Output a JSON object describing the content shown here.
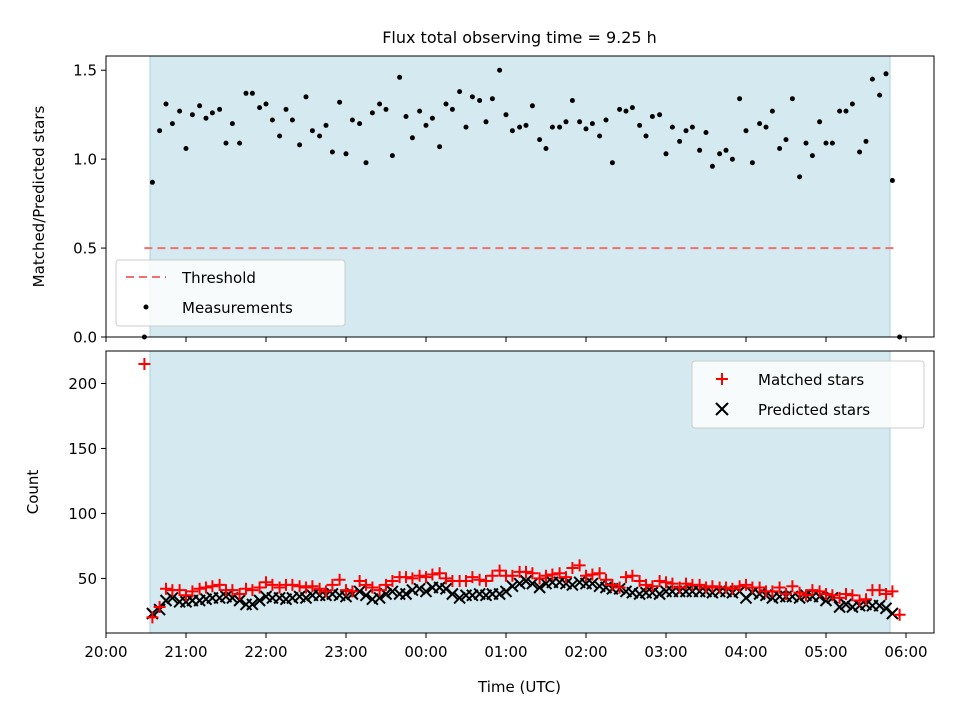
{
  "chart_data": [
    {
      "type": "scatter",
      "title": "Flux total observing time = 9.25 h",
      "xlabel": "",
      "ylabel": "Matched/Predicted stars",
      "ylim": [
        0,
        1.58
      ],
      "yticks": [
        0.0,
        0.5,
        1.0,
        1.5
      ],
      "ytick_labels": [
        "0.0",
        "0.5",
        "1.0",
        "1.5"
      ],
      "xlim_hours": [
        20.0,
        30.35
      ],
      "observing_window_hours": [
        20.55,
        29.8
      ],
      "threshold": {
        "name": "Threshold",
        "value": 0.5,
        "x_from_hours": 20.48,
        "x_to_hours": 29.88,
        "color": "#f07070"
      },
      "legend": {
        "position": "lower-left",
        "entries": [
          "Threshold",
          "Measurements"
        ]
      },
      "series": [
        {
          "name": "Measurements",
          "color": "#000000",
          "x_hours": [
            20.48,
            20.58,
            20.67,
            20.75,
            20.83,
            20.92,
            21.0,
            21.08,
            21.17,
            21.25,
            21.33,
            21.42,
            21.5,
            21.58,
            21.67,
            21.75,
            21.83,
            21.92,
            22.0,
            22.08,
            22.17,
            22.25,
            22.33,
            22.42,
            22.5,
            22.58,
            22.67,
            22.75,
            22.83,
            22.92,
            23.0,
            23.08,
            23.17,
            23.25,
            23.33,
            23.42,
            23.5,
            23.58,
            23.67,
            23.75,
            23.83,
            23.92,
            24.0,
            24.08,
            24.17,
            24.25,
            24.33,
            24.42,
            24.5,
            24.58,
            24.67,
            24.75,
            24.83,
            24.92,
            25.0,
            25.08,
            25.17,
            25.25,
            25.33,
            25.42,
            25.5,
            25.58,
            25.67,
            25.75,
            25.83,
            25.92,
            26.0,
            26.08,
            26.17,
            26.25,
            26.33,
            26.42,
            26.5,
            26.58,
            26.67,
            26.75,
            26.83,
            26.92,
            27.0,
            27.08,
            27.17,
            27.25,
            27.33,
            27.42,
            27.5,
            27.58,
            27.67,
            27.75,
            27.83,
            27.92,
            28.0,
            28.08,
            28.17,
            28.25,
            28.33,
            28.42,
            28.5,
            28.58,
            28.67,
            28.75,
            28.83,
            28.92,
            29.0,
            29.08,
            29.17,
            29.25,
            29.33,
            29.42,
            29.5,
            29.58,
            29.67,
            29.75,
            29.83,
            29.92
          ],
          "values": [
            0.0,
            0.87,
            1.16,
            1.31,
            1.2,
            1.27,
            1.06,
            1.25,
            1.3,
            1.23,
            1.26,
            1.28,
            1.09,
            1.2,
            1.09,
            1.37,
            1.37,
            1.29,
            1.31,
            1.22,
            1.13,
            1.28,
            1.22,
            1.08,
            1.35,
            1.16,
            1.13,
            1.19,
            1.04,
            1.32,
            1.03,
            1.22,
            1.2,
            0.98,
            1.26,
            1.31,
            1.28,
            1.02,
            1.46,
            1.24,
            1.12,
            1.27,
            1.19,
            1.23,
            1.07,
            1.31,
            1.28,
            1.38,
            1.18,
            1.35,
            1.33,
            1.21,
            1.34,
            1.5,
            1.25,
            1.16,
            1.18,
            1.19,
            1.3,
            1.11,
            1.06,
            1.18,
            1.18,
            1.21,
            1.33,
            1.21,
            1.17,
            1.2,
            1.13,
            1.22,
            0.98,
            1.28,
            1.27,
            1.29,
            1.19,
            1.13,
            1.24,
            1.25,
            1.03,
            1.18,
            1.1,
            1.16,
            1.18,
            1.05,
            1.15,
            0.96,
            1.03,
            1.05,
            1.0,
            1.34,
            1.16,
            0.98,
            1.2,
            1.18,
            1.27,
            1.06,
            1.11,
            1.34,
            0.9,
            1.09,
            1.02,
            1.21,
            1.09,
            1.09,
            1.27,
            1.27,
            1.31,
            1.04,
            1.1,
            1.45,
            1.36,
            1.48,
            0.88,
            0.0
          ]
        }
      ]
    },
    {
      "type": "scatter",
      "title": "",
      "xlabel": "Time (UTC)",
      "ylabel": "Count",
      "ylim": [
        8,
        225
      ],
      "yticks": [
        50,
        100,
        150,
        200
      ],
      "ytick_labels": [
        "50",
        "100",
        "150",
        "200"
      ],
      "xlim_hours": [
        20.0,
        30.35
      ],
      "xticks_hours": [
        20,
        21,
        22,
        23,
        24,
        25,
        26,
        27,
        28,
        29,
        30
      ],
      "categories": [
        "20:00",
        "21:00",
        "22:00",
        "23:00",
        "00:00",
        "01:00",
        "02:00",
        "03:00",
        "04:00",
        "05:00",
        "06:00"
      ],
      "observing_window_hours": [
        20.55,
        29.8
      ],
      "legend": {
        "position": "top-right",
        "entries": [
          "Matched stars",
          "Predicted stars"
        ]
      },
      "series": [
        {
          "name": "Matched stars",
          "marker": "plus",
          "color": "#ff0000",
          "x_hours": [
            20.48,
            20.58,
            20.67,
            20.75,
            20.83,
            20.92,
            21.0,
            21.08,
            21.17,
            21.25,
            21.33,
            21.42,
            21.5,
            21.58,
            21.67,
            21.75,
            21.83,
            21.92,
            22.0,
            22.08,
            22.17,
            22.25,
            22.33,
            22.42,
            22.5,
            22.58,
            22.67,
            22.75,
            22.83,
            22.92,
            23.0,
            23.08,
            23.17,
            23.25,
            23.33,
            23.42,
            23.5,
            23.58,
            23.67,
            23.75,
            23.83,
            23.92,
            24.0,
            24.08,
            24.17,
            24.25,
            24.33,
            24.42,
            24.5,
            24.58,
            24.67,
            24.75,
            24.83,
            24.92,
            25.0,
            25.08,
            25.17,
            25.25,
            25.33,
            25.42,
            25.5,
            25.58,
            25.67,
            25.75,
            25.83,
            25.92,
            26.0,
            26.08,
            26.17,
            26.25,
            26.33,
            26.42,
            26.5,
            26.58,
            26.67,
            26.75,
            26.83,
            26.92,
            27.0,
            27.08,
            27.17,
            27.25,
            27.33,
            27.42,
            27.5,
            27.58,
            27.67,
            27.75,
            27.83,
            27.92,
            28.0,
            28.08,
            28.17,
            28.25,
            28.33,
            28.42,
            28.5,
            28.58,
            28.67,
            28.75,
            28.83,
            28.92,
            29.0,
            29.08,
            29.17,
            29.25,
            29.33,
            29.42,
            29.5,
            29.58,
            29.67,
            29.75,
            29.83,
            29.92
          ],
          "values": [
            215,
            20,
            28,
            42,
            41,
            41,
            37,
            40,
            42,
            43,
            44,
            45,
            41,
            41,
            38,
            42,
            41,
            43,
            47,
            45,
            43,
            45,
            45,
            44,
            43,
            44,
            42,
            40,
            45,
            49,
            41,
            40,
            48,
            45,
            43,
            41,
            45,
            48,
            51,
            51,
            50,
            52,
            51,
            53,
            54,
            50,
            48,
            48,
            48,
            51,
            49,
            48,
            52,
            56,
            52,
            52,
            55,
            55,
            54,
            50,
            52,
            53,
            54,
            51,
            58,
            60,
            52,
            53,
            54,
            49,
            45,
            43,
            51,
            52,
            48,
            45,
            44,
            48,
            47,
            46,
            43,
            46,
            45,
            45,
            43,
            44,
            43,
            43,
            42,
            44,
            45,
            43,
            43,
            40,
            40,
            43,
            38,
            44,
            39,
            37,
            41,
            40,
            38,
            37,
            35,
            38,
            37,
            33,
            34,
            41,
            41,
            38,
            40,
            22
          ]
        },
        {
          "name": "Predicted stars",
          "marker": "x",
          "color": "#000000",
          "x_hours": [
            20.58,
            20.67,
            20.75,
            20.83,
            20.92,
            21.0,
            21.08,
            21.17,
            21.25,
            21.33,
            21.42,
            21.5,
            21.58,
            21.67,
            21.75,
            21.83,
            21.92,
            22.0,
            22.08,
            22.17,
            22.25,
            22.33,
            22.42,
            22.5,
            22.58,
            22.67,
            22.75,
            22.83,
            22.92,
            23.0,
            23.08,
            23.17,
            23.25,
            23.33,
            23.42,
            23.5,
            23.58,
            23.67,
            23.75,
            23.83,
            23.92,
            24.0,
            24.08,
            24.17,
            24.25,
            24.33,
            24.42,
            24.5,
            24.58,
            24.67,
            24.75,
            24.83,
            24.92,
            25.0,
            25.08,
            25.17,
            25.25,
            25.33,
            25.42,
            25.5,
            25.58,
            25.67,
            25.75,
            25.83,
            25.92,
            26.0,
            26.08,
            26.17,
            26.25,
            26.33,
            26.42,
            26.5,
            26.58,
            26.67,
            26.75,
            26.83,
            26.92,
            27.0,
            27.08,
            27.17,
            27.25,
            27.33,
            27.42,
            27.5,
            27.58,
            27.67,
            27.75,
            27.83,
            27.92,
            28.0,
            28.08,
            28.17,
            28.25,
            28.33,
            28.42,
            28.5,
            28.58,
            28.67,
            28.75,
            28.83,
            28.92,
            29.0,
            29.08,
            29.17,
            29.25,
            29.33,
            29.42,
            29.5,
            29.58,
            29.67,
            29.75,
            29.83
          ],
          "values": [
            23,
            26,
            33,
            35,
            32,
            32,
            33,
            33,
            34,
            35,
            35,
            36,
            35,
            33,
            30,
            30,
            33,
            36,
            35,
            35,
            34,
            35,
            36,
            35,
            37,
            37,
            37,
            38,
            37,
            36,
            38,
            40,
            37,
            34,
            35,
            38,
            40,
            38,
            38,
            41,
            42,
            40,
            43,
            43,
            42,
            38,
            35,
            37,
            37,
            38,
            37,
            38,
            38,
            40,
            44,
            46,
            48,
            46,
            43,
            46,
            47,
            47,
            46,
            45,
            47,
            46,
            46,
            44,
            43,
            42,
            42,
            40,
            39,
            38,
            39,
            39,
            38,
            40,
            40,
            40,
            40,
            40,
            40,
            40,
            39,
            40,
            40,
            39,
            40,
            35,
            39,
            38,
            37,
            35,
            36,
            36,
            36,
            35,
            37,
            36,
            36,
            33,
            35,
            28,
            30,
            28,
            29,
            30,
            29,
            29,
            27,
            23
          ]
        }
      ]
    }
  ]
}
